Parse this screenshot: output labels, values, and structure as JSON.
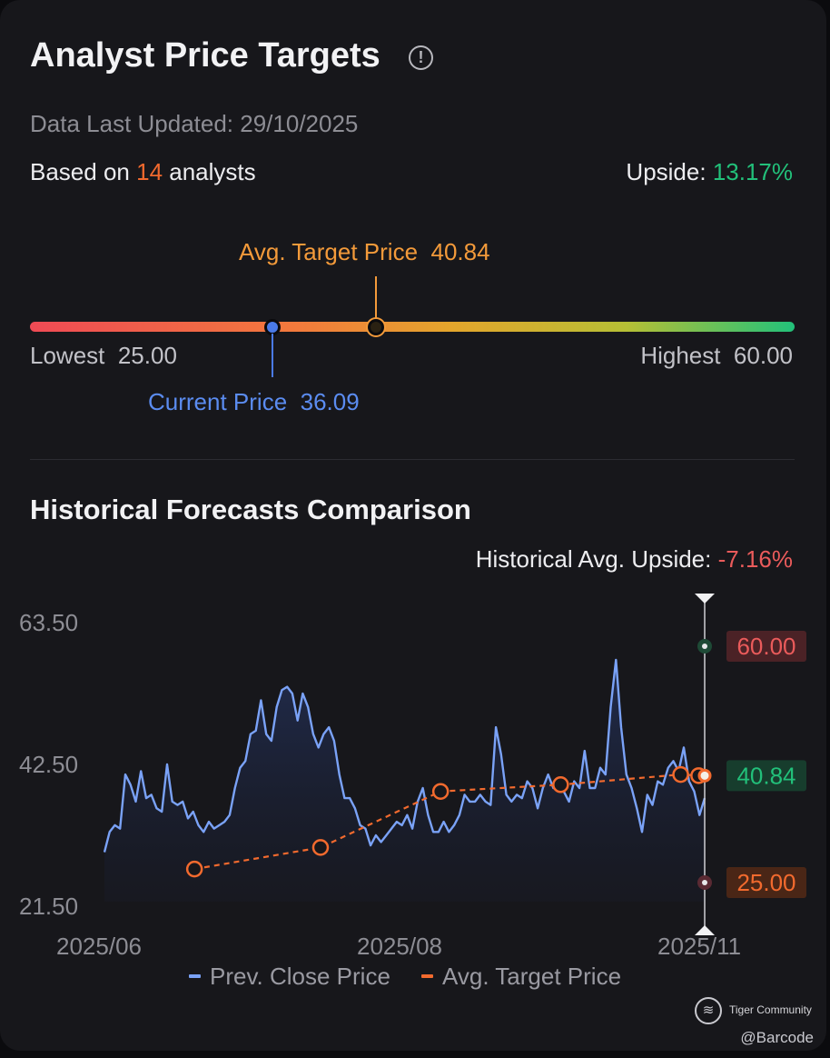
{
  "header": {
    "title": "Analyst Price Targets",
    "info_icon": "info-circle-icon",
    "updated": "Data Last Updated: 29/10/2025",
    "based_prefix": "Based on",
    "analyst_count": "14",
    "based_suffix": "analysts",
    "upside_label": "Upside:",
    "upside_value": "13.17%"
  },
  "gauge": {
    "avg_label": "Avg. Target Price",
    "avg_value": "40.84",
    "current_label": "Current Price",
    "current_value": "36.09",
    "lowest_label": "Lowest",
    "lowest_value": "25.00",
    "highest_label": "Highest",
    "highest_value": "60.00",
    "low_num": 25.0,
    "high_num": 60.0,
    "avg_num": 40.84,
    "current_num": 36.09
  },
  "historical": {
    "title": "Historical Forecasts Comparison",
    "avg_upside_label": "Historical Avg. Upside:",
    "avg_upside_value": "-7.16%"
  },
  "colors": {
    "close_line": "#7aa2f7",
    "target_line": "#f26a2e",
    "high_badge": "#ea5b5b",
    "avg_badge": "#22c07a",
    "low_badge": "#f26a2e"
  },
  "chart_data": {
    "type": "line",
    "y_ticks": [
      "63.50",
      "42.50",
      "21.50"
    ],
    "x_ticks": [
      "2025/06",
      "2025/08",
      "2025/11"
    ],
    "ylim": [
      21.5,
      63.5
    ],
    "legend": [
      "Prev. Close Price",
      "Avg. Target Price"
    ],
    "legend_position": "bottom",
    "right_labels": {
      "high": "60.00",
      "avg": "40.84",
      "low": "25.00"
    },
    "right_values": {
      "high": 60.0,
      "avg": 40.84,
      "low": 25.0
    },
    "series": [
      {
        "name": "Prev. Close Price",
        "values": [
          29.5,
          32.5,
          33.5,
          33.0,
          41,
          39.5,
          37,
          41.5,
          37.5,
          38,
          36,
          35.5,
          42.5,
          37,
          36.5,
          37,
          34.5,
          35.5,
          33.5,
          32.5,
          34,
          33,
          33.5,
          34,
          35,
          39,
          42,
          43,
          47,
          47.5,
          52,
          47,
          46,
          51,
          53.5,
          54,
          53,
          49,
          53,
          51,
          47,
          45,
          47,
          48,
          46,
          41,
          37.5,
          37.5,
          36,
          33.5,
          33,
          30.5,
          32,
          31,
          32,
          33,
          34,
          33.5,
          35,
          33,
          37,
          39,
          35,
          32.5,
          32.5,
          34,
          32.5,
          33.5,
          35,
          38,
          37,
          37,
          38,
          37,
          36.5,
          48,
          44,
          38,
          37,
          38,
          37.5,
          40,
          39,
          36,
          39,
          41,
          39,
          40,
          38.5,
          37,
          40,
          39,
          44.5,
          39,
          39,
          42,
          41,
          51,
          58,
          48,
          41,
          39,
          36,
          32.5,
          38,
          36.5,
          40,
          39.5,
          42,
          43,
          41.5,
          45,
          40,
          38.5,
          35,
          37.5
        ]
      },
      {
        "name": "Avg. Target Price",
        "points": [
          [
            0.15,
            27.0
          ],
          [
            0.36,
            30.2
          ],
          [
            0.56,
            38.5
          ],
          [
            0.76,
            39.5
          ],
          [
            0.96,
            41.0
          ],
          [
            0.99,
            40.84
          ]
        ]
      }
    ]
  },
  "watermark": {
    "icon": "tiger-logo-icon",
    "brand": "Tiger Community",
    "handle": "@Barcode"
  }
}
